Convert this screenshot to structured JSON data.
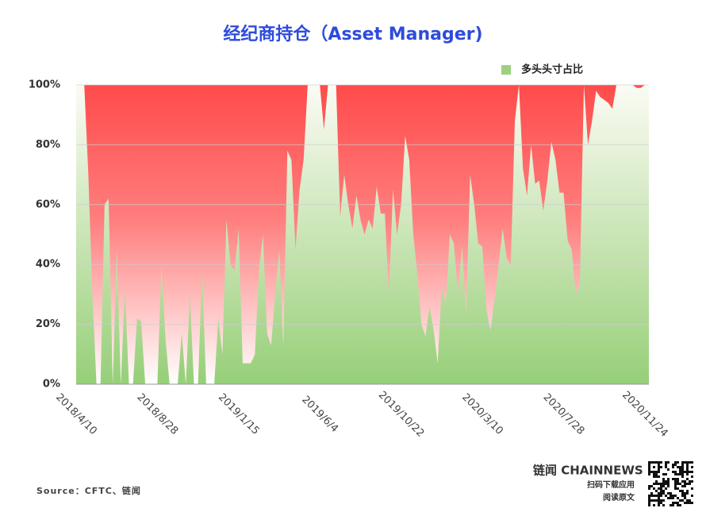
{
  "chart_data": {
    "type": "area",
    "title": "经纪商持仓（Asset Manager)",
    "series": [
      {
        "name": "多头头寸占比",
        "color": "#9dd17f",
        "values": [
          100,
          100,
          100,
          70,
          30,
          0,
          0,
          60,
          62,
          0,
          45,
          0,
          32,
          0,
          0,
          22,
          21,
          0,
          0,
          0,
          0,
          40,
          15,
          0,
          0,
          0,
          17,
          0,
          30,
          0,
          0,
          38,
          0,
          0,
          0,
          22,
          10,
          55,
          40,
          38,
          52,
          7,
          7,
          7,
          10,
          38,
          50,
          17,
          13,
          30,
          45,
          13,
          78,
          75,
          45,
          65,
          75,
          100,
          100,
          100,
          100,
          85,
          100,
          100,
          100,
          56,
          70,
          60,
          52,
          63,
          55,
          50,
          55,
          52,
          66,
          57,
          57,
          30,
          65,
          50,
          60,
          83,
          75,
          50,
          37,
          20,
          16,
          26,
          18,
          7,
          32,
          27,
          50,
          47,
          30,
          46,
          24,
          70,
          60,
          47,
          46,
          25,
          18,
          28,
          40,
          52,
          42,
          40,
          88,
          100,
          72,
          63,
          80,
          67,
          68,
          58,
          68,
          81,
          75,
          64,
          64,
          48,
          45,
          30,
          34,
          100,
          80,
          88,
          98,
          96,
          95,
          94,
          92,
          100,
          100,
          100,
          100,
          100,
          99,
          99,
          100,
          100
        ]
      }
    ],
    "categories": [
      "2018/4/10",
      null,
      null,
      null,
      null,
      null,
      null,
      null,
      null,
      null,
      null,
      null,
      null,
      null,
      null,
      null,
      null,
      null,
      null,
      null,
      "2018/8/28",
      null,
      null,
      null,
      null,
      null,
      null,
      null,
      null,
      null,
      null,
      null,
      null,
      null,
      null,
      null,
      null,
      null,
      null,
      null,
      "2019/1/15",
      null,
      null,
      null,
      null,
      null,
      null,
      null,
      null,
      null,
      null,
      null,
      null,
      null,
      null,
      null,
      null,
      null,
      null,
      null,
      "2019/6/4",
      null,
      null,
      null,
      null,
      null,
      null,
      null,
      null,
      null,
      null,
      null,
      null,
      null,
      null,
      null,
      null,
      null,
      null,
      null,
      "2019/10/22",
      null,
      null,
      null,
      null,
      null,
      null,
      null,
      null,
      null,
      null,
      null,
      null,
      null,
      null,
      null,
      null,
      null,
      null,
      null,
      "2020/3/10",
      null,
      null,
      null,
      null,
      null,
      null,
      null,
      null,
      null,
      null,
      null,
      null,
      null,
      null,
      null,
      null,
      null,
      null,
      null,
      "2020/7/28",
      null,
      null,
      null,
      null,
      null,
      null,
      null,
      null,
      null,
      null,
      null,
      null,
      null,
      null,
      null,
      null,
      null,
      null,
      null,
      "2020/11/24",
      null
    ],
    "short_color": "#ff4b4b",
    "ylim": [
      0,
      100
    ],
    "yticks": [
      {
        "value": 0,
        "label": "0%"
      },
      {
        "value": 20,
        "label": "20%"
      },
      {
        "value": 40,
        "label": "40%"
      },
      {
        "value": 60,
        "label": "60%"
      },
      {
        "value": 80,
        "label": "80%"
      },
      {
        "value": 100,
        "label": "100%"
      }
    ],
    "grid": true,
    "legend": "top-right",
    "source": "Source：CFTC、链闻"
  },
  "branding": {
    "name": "链闻 CHAINNEWS",
    "line1": "扫码下载应用",
    "line2": "阅读原文"
  }
}
